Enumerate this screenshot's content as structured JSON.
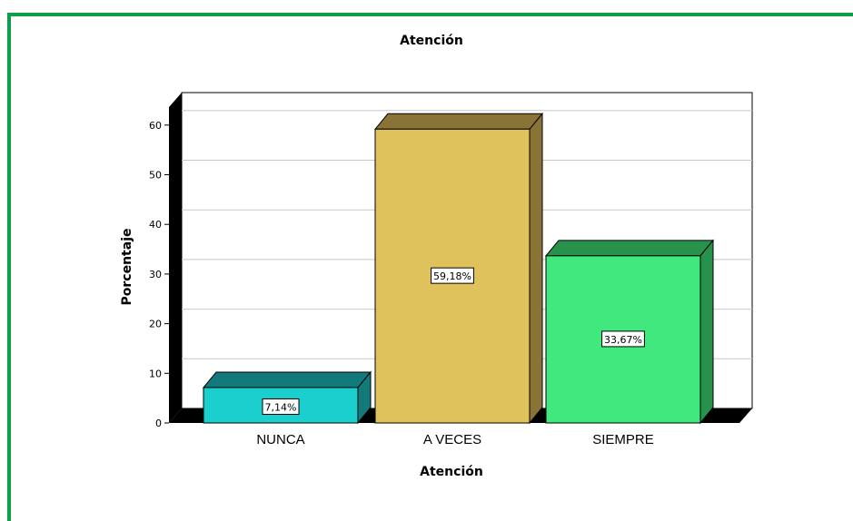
{
  "chart_data": {
    "type": "bar",
    "title": "Atención",
    "xlabel": "Atención",
    "ylabel": "Porcentaje",
    "categories": [
      "NUNCA",
      "A VECES",
      "SIEMPRE"
    ],
    "values": [
      7.14,
      59.18,
      33.67
    ],
    "data_labels": [
      "7,14%",
      "59,18%",
      "33,67%"
    ],
    "colors": [
      "#1ccfcf",
      "#dfc25b",
      "#41e87d"
    ],
    "side_colors": [
      "#127a7a",
      "#8a7336",
      "#26924c"
    ],
    "ylim": [
      0,
      65
    ],
    "yticks": [
      0,
      10,
      20,
      30,
      40,
      50,
      60
    ],
    "grid": true,
    "three_d": true
  },
  "frame_color": "#0aa14a"
}
